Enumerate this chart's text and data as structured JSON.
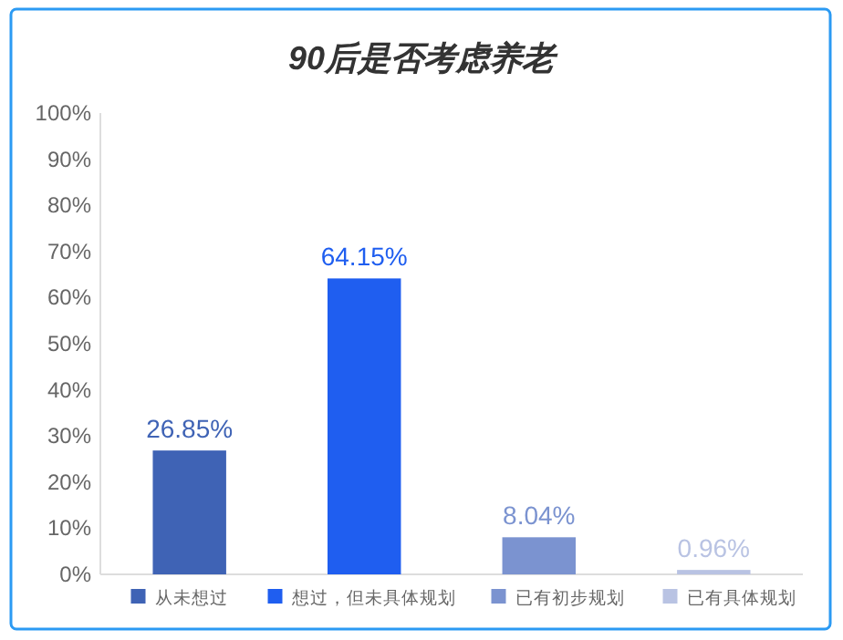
{
  "chart_data": {
    "type": "bar",
    "title": "90后是否考虑养老",
    "categories": [
      null,
      null,
      null,
      null
    ],
    "series": [
      {
        "name": "从未想过",
        "color": "#3f63b5",
        "values": [
          26.85,
          null,
          null,
          null
        ],
        "value_labels": [
          "26.85%",
          null,
          null,
          null
        ]
      },
      {
        "name": "想过，但未具体规划",
        "color": "#1f5ef0",
        "values": [
          null,
          64.15,
          null,
          null
        ],
        "value_labels": [
          null,
          "64.15%",
          null,
          null
        ]
      },
      {
        "name": "已有初步规划",
        "color": "#7b93d0",
        "values": [
          null,
          null,
          8.04,
          null
        ],
        "value_labels": [
          null,
          null,
          "8.04%",
          null
        ]
      },
      {
        "name": "已有具体规划",
        "color": "#b9c3e3",
        "values": [
          null,
          null,
          null,
          0.96
        ],
        "value_labels": [
          null,
          null,
          null,
          "0.96%"
        ]
      }
    ],
    "ylim": [
      0,
      100
    ],
    "yticks": [
      {
        "value": 0,
        "label": "0%"
      },
      {
        "value": 10,
        "label": "10%"
      },
      {
        "value": 20,
        "label": "20%"
      },
      {
        "value": 30,
        "label": "30%"
      },
      {
        "value": 40,
        "label": "40%"
      },
      {
        "value": 50,
        "label": "50%"
      },
      {
        "value": 60,
        "label": "60%"
      },
      {
        "value": 70,
        "label": "70%"
      },
      {
        "value": 80,
        "label": "80%"
      },
      {
        "value": 90,
        "label": "90%"
      },
      {
        "value": 100,
        "label": "100%"
      }
    ],
    "grid": false,
    "legend": "bottom",
    "tick_labels": "y"
  }
}
